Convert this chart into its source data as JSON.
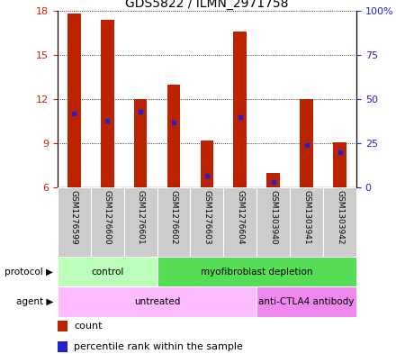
{
  "title": "GDS5822 / ILMN_2971758",
  "samples": [
    "GSM1276599",
    "GSM1276600",
    "GSM1276601",
    "GSM1276602",
    "GSM1276603",
    "GSM1276604",
    "GSM1303940",
    "GSM1303941",
    "GSM1303942"
  ],
  "bar_heights": [
    17.8,
    17.4,
    12.0,
    13.0,
    9.2,
    16.6,
    7.0,
    12.0,
    9.1
  ],
  "bar_base": 6.0,
  "percentile_values": [
    42,
    38,
    43,
    37,
    7,
    40,
    3,
    24,
    20
  ],
  "ylim": [
    6,
    18
  ],
  "ylim_right": [
    0,
    100
  ],
  "yticks_left": [
    6,
    9,
    12,
    15,
    18
  ],
  "yticks_right": [
    0,
    25,
    50,
    75,
    100
  ],
  "bar_color": "#bb2200",
  "dot_color": "#2222cc",
  "grid_color": "#000000",
  "protocol_groups": [
    {
      "label": "control",
      "start": 0,
      "end": 3,
      "color": "#bbffbb"
    },
    {
      "label": "myofibroblast depletion",
      "start": 3,
      "end": 9,
      "color": "#55dd55"
    }
  ],
  "agent_groups": [
    {
      "label": "untreated",
      "start": 0,
      "end": 6,
      "color": "#ffbbff"
    },
    {
      "label": "anti-CTLA4 antibody",
      "start": 6,
      "end": 9,
      "color": "#ee88ee"
    }
  ],
  "title_fontsize": 10,
  "axis_label_color_left": "#cc2200",
  "axis_label_color_right": "#2222cc"
}
